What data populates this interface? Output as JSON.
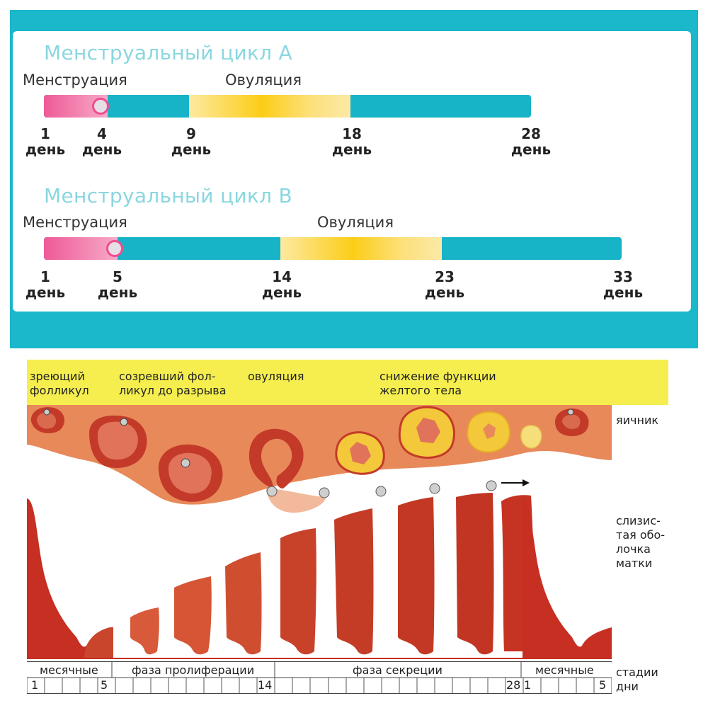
{
  "cycle_a": {
    "title": "Менструальный цикл A",
    "menstruation_label": "Менструация",
    "ovulation_label": "Овуляция",
    "ticks": [
      {
        "num": "1",
        "unit": "день"
      },
      {
        "num": "4",
        "unit": "день"
      },
      {
        "num": "9",
        "unit": "день"
      },
      {
        "num": "18",
        "unit": "день"
      },
      {
        "num": "28",
        "unit": "день"
      }
    ]
  },
  "cycle_b": {
    "title": "Менструальный цикл B",
    "menstruation_label": "Менструация",
    "ovulation_label": "Овуляция",
    "ticks": [
      {
        "num": "1",
        "unit": "день"
      },
      {
        "num": "5",
        "unit": "день"
      },
      {
        "num": "14",
        "unit": "день"
      },
      {
        "num": "23",
        "unit": "день"
      },
      {
        "num": "33",
        "unit": "день"
      }
    ]
  },
  "diagram": {
    "headers": {
      "maturing_follicle": "зреющий\nфолликул",
      "mature_follicle": "созревший фол-\nликул до разрыва",
      "ovulation": "овуляция",
      "corpus_luteum": "снижение функции\nжелтого тела"
    },
    "side_labels": {
      "ovary": "яичник",
      "mucosa": "слизис-\nтая обо-\nлочка\nматки",
      "stages": "стадии",
      "days": "дни"
    },
    "stages": {
      "menses_1": "месячные",
      "proliferation": "фаза пролиферации",
      "secretion": "фаза секреции",
      "menses_2": "месячные"
    },
    "day_labels": [
      "1",
      "5",
      "14",
      "28",
      "1",
      "5"
    ]
  },
  "colors": {
    "panel": "#1bb7cb",
    "menstruation": "#ee5a96",
    "ovulation": "#fccd17",
    "header_band": "#f5ee4e",
    "ovary": "#e8895a",
    "endometrium": "#c62f22"
  }
}
